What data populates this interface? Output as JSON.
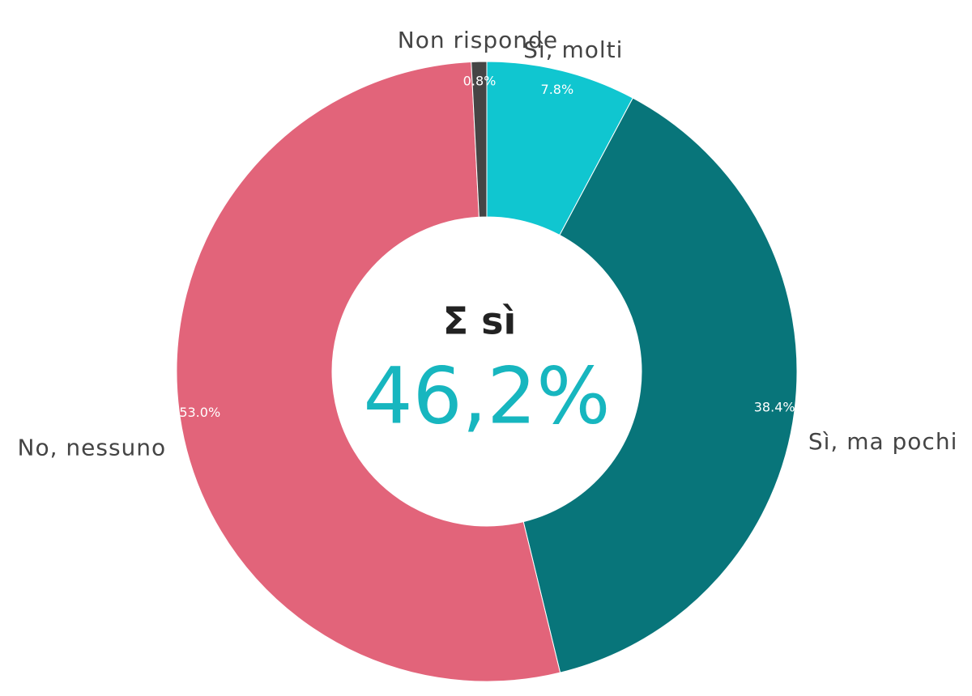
{
  "chart_data": {
    "type": "donut",
    "categories": [
      "Sì, molti",
      "Sì, ma pochi",
      "No, nessuno",
      "Non risponde"
    ],
    "values": [
      7.8,
      38.4,
      53.0,
      0.8
    ],
    "value_labels": [
      "7.8%",
      "38.4%",
      "53.0%",
      "0.8%"
    ],
    "colors": [
      "#10c6d0",
      "#08757a",
      "#e2647a",
      "#454545"
    ],
    "center_title": "Σ sì",
    "center_value": {
      "value": 46.2,
      "label": "46,2%"
    },
    "center_color": "#17b6bf"
  }
}
